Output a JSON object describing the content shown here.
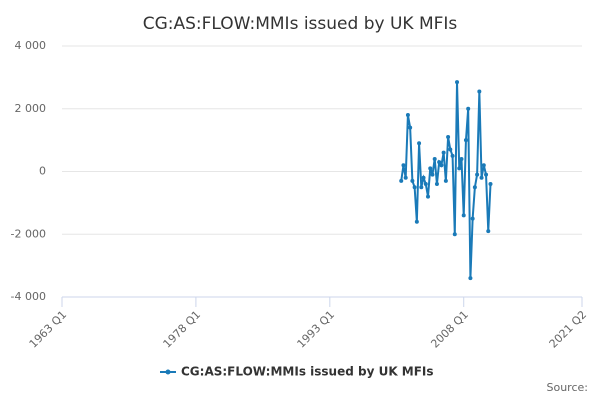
{
  "chart_data": {
    "type": "line",
    "title": "CG:AS:FLOW:MMIs issued by UK MFIs",
    "source": "Source:",
    "x": [
      2001.0,
      2001.25,
      2001.5,
      2001.75,
      2002.0,
      2002.25,
      2002.5,
      2002.75,
      2003.0,
      2003.25,
      2003.5,
      2003.75,
      2004.0,
      2004.25,
      2004.5,
      2004.75,
      2005.0,
      2005.25,
      2005.5,
      2005.75,
      2006.0,
      2006.25,
      2006.5,
      2006.75,
      2007.0,
      2007.25,
      2007.5,
      2007.75,
      2008.0,
      2008.25,
      2008.5,
      2008.75,
      2009.0,
      2009.25,
      2009.5,
      2009.75,
      2010.0,
      2010.25,
      2010.5,
      2010.75,
      2011.0
    ],
    "series": [
      {
        "name": "CG:AS:FLOW:MMIs issued by UK MFIs",
        "color": "#1a7ab8",
        "values": [
          -300,
          200,
          -200,
          1800,
          1400,
          -300,
          -500,
          -1600,
          900,
          -500,
          -200,
          -400,
          -800,
          100,
          -100,
          400,
          -400,
          300,
          200,
          600,
          -300,
          1100,
          700,
          500,
          -2000,
          2850,
          100,
          400,
          -1400,
          1000,
          2000,
          -3400,
          -1500,
          -500,
          -100,
          2550,
          -200,
          200,
          -100,
          -1900,
          -400
        ]
      }
    ],
    "xlim": [
      1963.0,
      2021.25
    ],
    "xticks": [
      {
        "value": 1963.0,
        "label": "1963 Q1"
      },
      {
        "value": 1978.0,
        "label": "1978 Q1"
      },
      {
        "value": 1993.0,
        "label": "1993 Q1"
      },
      {
        "value": 2008.0,
        "label": "2008 Q1"
      },
      {
        "value": 2021.25,
        "label": "2021 Q2"
      }
    ],
    "ylim": [
      -4000,
      4000
    ],
    "yticks": [
      {
        "value": -4000,
        "label": "-4 000"
      },
      {
        "value": -2000,
        "label": "-2 000"
      },
      0,
      {
        "value": 2000,
        "label": "2 000"
      },
      {
        "value": 4000,
        "label": "4 000"
      }
    ],
    "grid": true
  }
}
